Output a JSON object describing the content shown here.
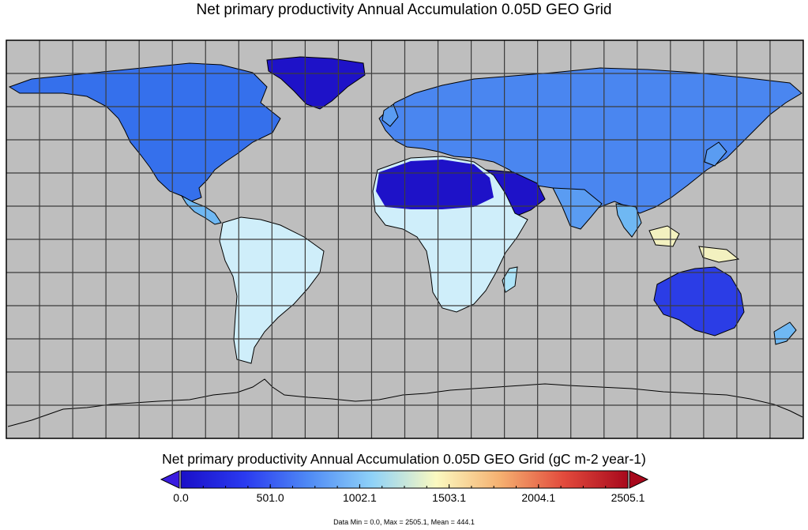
{
  "title": "Net primary productivity Annual Accumulation 0.05D GEO Grid",
  "colorbar": {
    "title": "Net primary productivity Annual Accumulation 0.05D GEO Grid (gC m-2 year-1)",
    "min": 0.0,
    "max": 2505.1,
    "ticks": [
      "0.0",
      "501.0",
      "1002.1",
      "1503.1",
      "2004.1",
      "2505.1"
    ],
    "stops": [
      "#1a0fc8",
      "#2a3af0",
      "#4f8af5",
      "#8fd2f8",
      "#fbf9c0",
      "#f5b070",
      "#e24a3c",
      "#a8081c"
    ],
    "under_color": "#3a1ce0",
    "over_color": "#a8081c"
  },
  "stats": "Data Min = 0.0, Max = 2505.1, Mean = 444.1",
  "map": {
    "ocean_color": "#bebebe",
    "grid_color": "#3c3c3c",
    "coast_color": "#000000"
  }
}
